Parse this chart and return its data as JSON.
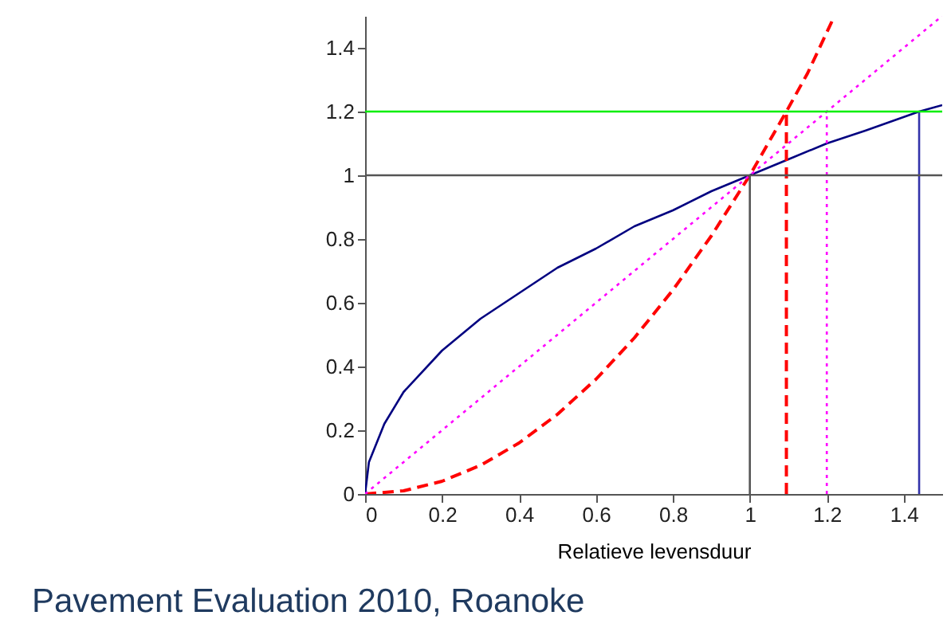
{
  "chart_data": {
    "type": "line",
    "xlabel": "Relatieve levensduur",
    "xlim": [
      0,
      1.5
    ],
    "ylim": [
      0,
      1.5
    ],
    "xticks": [
      0,
      0.2,
      0.4,
      0.6,
      0.8,
      1,
      1.2,
      1.4
    ],
    "yticks": [
      0,
      0.2,
      0.4,
      0.6,
      0.8,
      1,
      1.2,
      1.4
    ],
    "grid": false,
    "marker": "none",
    "series": [
      {
        "color": "#000080",
        "line_style": "solid",
        "x": [
          0,
          0.01,
          0.05,
          0.1,
          0.2,
          0.3,
          0.4,
          0.5,
          0.6,
          0.7,
          0.8,
          0.9,
          1,
          1.1,
          1.2,
          1.3,
          1.44,
          1.5
        ],
        "values": [
          0,
          0.1,
          0.22,
          0.32,
          0.45,
          0.55,
          0.63,
          0.71,
          0.77,
          0.84,
          0.89,
          0.95,
          1,
          1.05,
          1.1,
          1.14,
          1.2,
          1.22
        ]
      },
      {
        "color": "#ff0000",
        "line_style": "dashed",
        "x": [
          0,
          0.1,
          0.2,
          0.3,
          0.4,
          0.5,
          0.6,
          0.7,
          0.8,
          0.9,
          1,
          1.095,
          1.15,
          1.22
        ],
        "values": [
          0,
          0.01,
          0.04,
          0.09,
          0.16,
          0.25,
          0.36,
          0.49,
          0.64,
          0.81,
          1,
          1.2,
          1.32,
          1.5
        ]
      },
      {
        "color": "#ff00ff",
        "line_style": "dotted",
        "x": [
          0,
          1.5
        ],
        "values": [
          0,
          1.5
        ]
      },
      {
        "color": "#555555",
        "line_style": "solid",
        "x": [
          1,
          1
        ],
        "values": [
          0,
          1
        ]
      },
      {
        "color": "#ff0000",
        "line_style": "dashed",
        "x": [
          1.095,
          1.095
        ],
        "values": [
          0,
          1.2
        ]
      },
      {
        "color": "#ff00ff",
        "line_style": "dotted",
        "x": [
          1.2,
          1.2
        ],
        "values": [
          0,
          1.2
        ]
      },
      {
        "color": "#3333aa",
        "line_style": "solid",
        "x": [
          1.44,
          1.44
        ],
        "values": [
          0,
          1.2
        ]
      }
    ],
    "ref_lines": [
      {
        "axis": "y",
        "value": 1.2,
        "color": "#00ee00"
      },
      {
        "axis": "y",
        "value": 1,
        "color": "#555555"
      }
    ],
    "annotations": [
      "Pavement Evaluation 2010, Roanoke"
    ]
  }
}
